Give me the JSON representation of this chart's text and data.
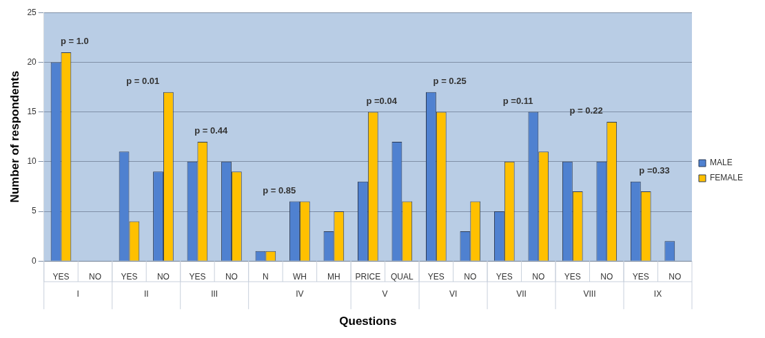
{
  "chart_data": {
    "type": "bar",
    "xlabel": "Questions",
    "ylabel": "Number of respondents",
    "categories": [
      "YES",
      "NO",
      "YES",
      "NO",
      "YES",
      "NO",
      "N",
      "WH",
      "MH",
      "PRICE",
      "QUAL",
      "YES",
      "NO",
      "YES",
      "NO",
      "YES",
      "NO",
      "YES",
      "NO"
    ],
    "series": [
      {
        "name": "MALE",
        "color": "#4f81d0",
        "values": [
          20,
          0,
          11,
          9,
          10,
          10,
          1,
          6,
          3,
          8,
          12,
          17,
          3,
          5,
          15,
          10,
          10,
          8,
          2
        ]
      },
      {
        "name": "FEMALE",
        "color": "#ffc000",
        "values": [
          21,
          0,
          4,
          17,
          12,
          9,
          1,
          6,
          5,
          15,
          6,
          15,
          6,
          10,
          11,
          7,
          14,
          7,
          0
        ]
      }
    ],
    "ylim": [
      0,
      25
    ],
    "yticks": [
      0,
      5,
      10,
      15,
      20,
      25
    ],
    "annotations": [
      "p = 1.0",
      "p = 0.01",
      "p = 0.44",
      "p = 0.85",
      "p =0.04",
      "p = 0.25",
      "p =0.11",
      "p = 0.22",
      "p =0.33",
      "I",
      "II",
      "III",
      "IV",
      "V",
      "VI",
      "VII",
      "VIII",
      "IX"
    ],
    "grid": "y",
    "legend": "right"
  }
}
